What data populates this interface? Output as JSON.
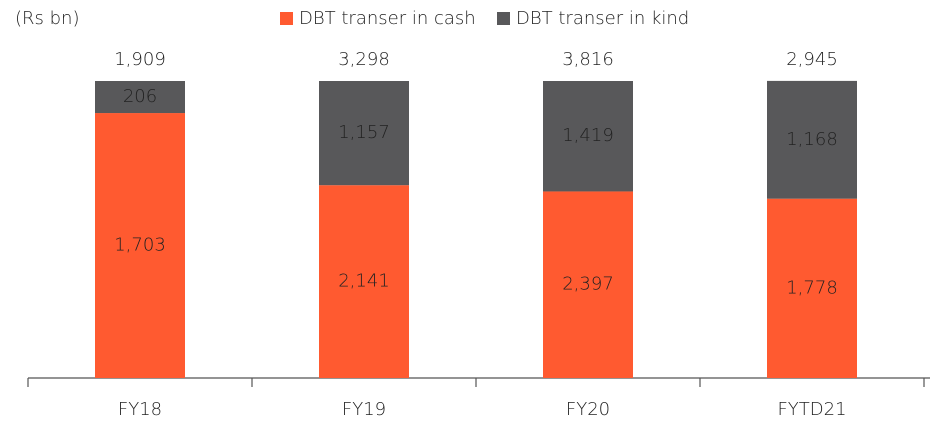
{
  "chart_data": {
    "type": "bar",
    "stacked": "percent",
    "unit_label": "(Rs bn)",
    "categories": [
      "FY18",
      "FY19",
      "FY20",
      "FYTD21"
    ],
    "series": [
      {
        "name": "DBT transer in cash",
        "color": "#ff5a30",
        "values": [
          1703,
          2141,
          2397,
          1778
        ],
        "value_labels": [
          "1,703",
          "2,141",
          "2,397",
          "1,778"
        ]
      },
      {
        "name": "DBT transer in kind",
        "color": "#58585a",
        "values": [
          206,
          1157,
          1419,
          1168
        ],
        "value_labels": [
          "206",
          "1,157",
          "1,419",
          "1,168"
        ]
      }
    ],
    "totals": [
      1909,
      3298,
      3816,
      2945
    ],
    "total_labels": [
      "1,909",
      "3,298",
      "3,816",
      "2,945"
    ],
    "legend": "top"
  }
}
